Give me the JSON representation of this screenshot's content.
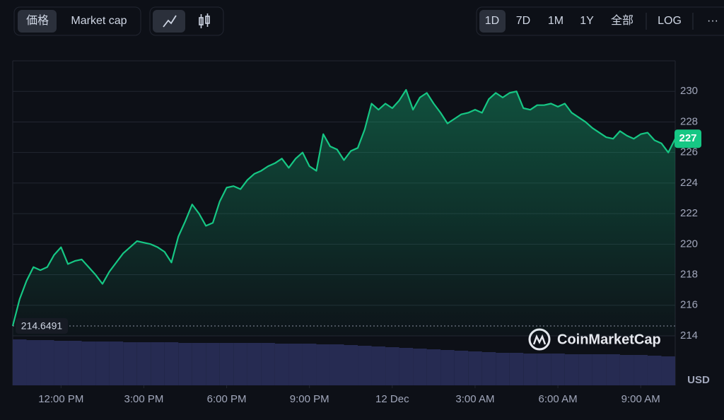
{
  "toolbar": {
    "metrics": [
      "価格",
      "Market cap"
    ],
    "ranges": [
      "1D",
      "7D",
      "1M",
      "1Y",
      "全部"
    ],
    "log": "LOG",
    "more": "···"
  },
  "chart_data": {
    "type": "line",
    "color": "#16c784",
    "grid": true,
    "x": [
      10.25,
      10.5,
      10.75,
      11,
      11.25,
      11.5,
      11.75,
      12,
      12.25,
      12.5,
      12.75,
      13,
      13.25,
      13.5,
      13.75,
      14,
      14.25,
      14.5,
      14.75,
      15,
      15.25,
      15.5,
      15.75,
      16,
      16.25,
      16.5,
      16.75,
      17,
      17.25,
      17.5,
      17.75,
      18,
      18.25,
      18.5,
      18.75,
      19,
      19.25,
      19.5,
      19.75,
      20,
      20.25,
      20.5,
      20.75,
      21,
      21.25,
      21.5,
      21.75,
      22,
      22.25,
      22.5,
      22.75,
      23,
      23.25,
      23.5,
      23.75,
      24,
      24.25,
      24.5,
      24.75,
      25,
      25.25,
      25.5,
      25.75,
      26,
      26.25,
      26.5,
      26.75,
      27,
      27.25,
      27.5,
      27.75,
      28,
      28.25,
      28.5,
      28.75,
      29,
      29.25,
      29.5,
      29.75,
      30,
      30.25,
      30.5,
      30.75,
      31,
      31.25,
      31.5,
      31.75,
      32,
      32.25,
      32.5,
      32.75,
      33,
      33.25,
      33.5,
      33.75,
      34,
      34.25
    ],
    "series": [
      {
        "name": "Price",
        "color": "#16c784",
        "values": [
          214.6491,
          216.4,
          217.6,
          218.5,
          218.3,
          218.5,
          219.3,
          219.8,
          218.7,
          218.9,
          219,
          218.5,
          218,
          217.4,
          218.2,
          218.8,
          219.4,
          219.8,
          220.2,
          220.1,
          220,
          219.8,
          219.5,
          218.8,
          220.5,
          221.5,
          222.6,
          222,
          221.2,
          221.4,
          222.8,
          223.7,
          223.8,
          223.6,
          224.2,
          224.6,
          224.8,
          225.1,
          225.3,
          225.6,
          225,
          225.6,
          226,
          225.1,
          224.8,
          227.2,
          226.4,
          226.2,
          225.5,
          226.1,
          226.3,
          227.5,
          229.2,
          228.8,
          229.2,
          228.9,
          229.4,
          230.1,
          228.8,
          229.6,
          229.9,
          229.2,
          228.6,
          227.9,
          228.2,
          228.5,
          228.6,
          228.8,
          228.6,
          229.5,
          229.9,
          229.6,
          229.9,
          230,
          228.9,
          228.8,
          229.1,
          229.1,
          229.2,
          229,
          229.2,
          228.6,
          228.3,
          228,
          227.6,
          227.3,
          227,
          226.9,
          227.4,
          227.1,
          226.9,
          227.2,
          227.3,
          226.8,
          226.6,
          226,
          226.9
        ]
      }
    ],
    "reference_price": 214.6491,
    "current_label": "227",
    "volume": {
      "color": "#262b52",
      "x": [
        10.25,
        10.75,
        11.25,
        11.75,
        12.25,
        12.75,
        13.25,
        13.75,
        14.25,
        14.75,
        15.25,
        15.75,
        16.25,
        16.75,
        17.25,
        17.75,
        18.25,
        18.75,
        19.25,
        19.75,
        20.25,
        20.75,
        21.25,
        21.75,
        22.25,
        22.75,
        23.25,
        23.75,
        24.25,
        24.75,
        25.25,
        25.75,
        26.25,
        26.75,
        27.25,
        27.75,
        28.25,
        28.75,
        29.25,
        29.75,
        30.25,
        30.75,
        31.25,
        31.75,
        32.25,
        32.75,
        33.25,
        33.75
      ],
      "values": [
        65,
        64,
        64,
        63,
        63,
        62,
        62,
        62,
        61,
        61,
        61,
        61,
        60,
        60,
        60,
        60,
        60,
        60,
        60,
        59,
        59,
        59,
        58,
        58,
        57,
        56,
        55,
        54,
        53,
        52,
        51,
        50,
        49,
        48,
        47,
        46,
        46,
        45,
        45,
        45,
        44,
        44,
        44,
        44,
        43,
        43,
        42,
        41
      ]
    },
    "xlim": [
      10.25,
      34.25
    ],
    "xticks": [
      {
        "value": 12,
        "label": "12:00 PM"
      },
      {
        "value": 15,
        "label": "3:00 PM"
      },
      {
        "value": 18,
        "label": "6:00 PM"
      },
      {
        "value": 21,
        "label": "9:00 PM"
      },
      {
        "value": 24,
        "label": "12 Dec"
      },
      {
        "value": 27,
        "label": "3:00 AM"
      },
      {
        "value": 30,
        "label": "6:00 AM"
      },
      {
        "value": 33,
        "label": "9:00 AM"
      }
    ],
    "ylim": [
      214,
      232
    ],
    "yticks": [
      214,
      216,
      218,
      220,
      222,
      224,
      226,
      228,
      230
    ],
    "y_axis_label": "USD",
    "watermark": "CoinMarketCap"
  }
}
